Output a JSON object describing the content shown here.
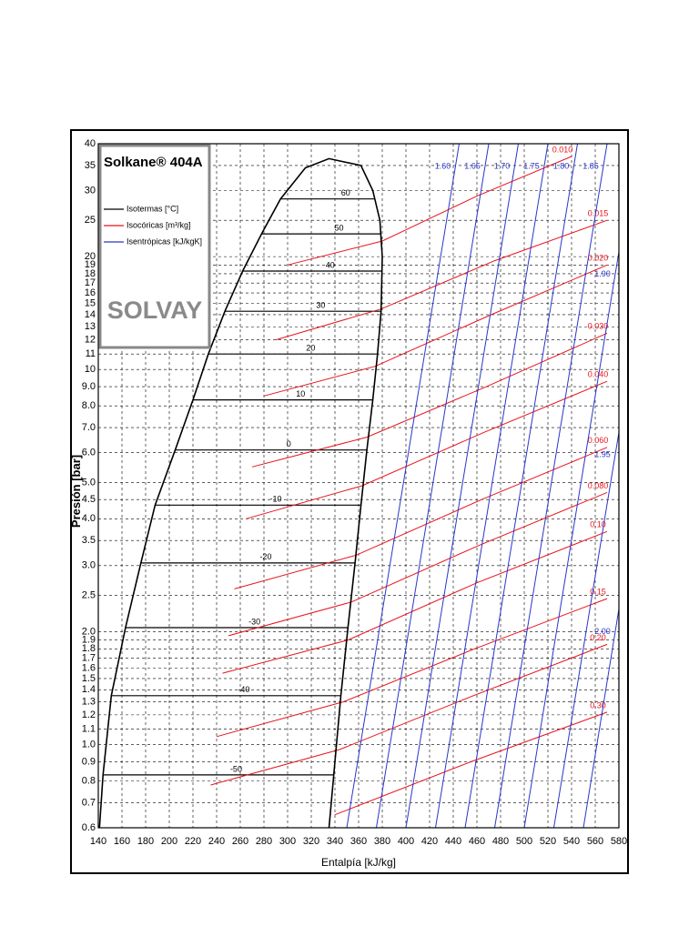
{
  "chart_data": {
    "type": "line",
    "title": "Solkane® 404A",
    "logo_text": "SOLVAY",
    "xlabel": "Entalpía [kJ/kg]",
    "ylabel": "Presión [bar]",
    "log_y": true,
    "grid": true,
    "xlim": [
      140,
      580
    ],
    "ylim": [
      0.6,
      40
    ],
    "xticks": [
      140,
      160,
      180,
      200,
      220,
      240,
      260,
      280,
      300,
      320,
      340,
      360,
      380,
      400,
      420,
      440,
      460,
      480,
      500,
      520,
      540,
      560,
      580
    ],
    "yticks": [
      0.6,
      0.7,
      0.8,
      0.9,
      {
        "value": 1,
        "label": "1.0"
      },
      1.1,
      1.2,
      1.3,
      1.4,
      1.5,
      1.6,
      1.7,
      1.8,
      1.9,
      {
        "value": 2,
        "label": "2.0"
      },
      2.5,
      {
        "value": 3,
        "label": "3.0"
      },
      3.5,
      {
        "value": 4,
        "label": "4.0"
      },
      4.5,
      {
        "value": 5,
        "label": "5.0"
      },
      {
        "value": 6,
        "label": "6.0"
      },
      {
        "value": 7,
        "label": "7.0"
      },
      {
        "value": 8,
        "label": "8.0"
      },
      {
        "value": 9,
        "label": "9.0"
      },
      10,
      11,
      12,
      13,
      14,
      15,
      16,
      17,
      18,
      19,
      20,
      25,
      30,
      35,
      40
    ],
    "saturation_curve": {
      "color": "#000000",
      "x": [
        141,
        144,
        151,
        163,
        176,
        188,
        205,
        220,
        233,
        247,
        262,
        278,
        294,
        315,
        335,
        362,
        372,
        378,
        380,
        379,
        376,
        372,
        367,
        362,
        357,
        351,
        345,
        339,
        335
      ],
      "values": [
        0.6,
        0.83,
        1.35,
        2.05,
        3.05,
        4.35,
        6.1,
        8.3,
        11,
        14.3,
        18.3,
        23,
        28.5,
        34.5,
        36.5,
        35,
        30,
        25,
        20,
        14.3,
        11,
        8.3,
        6.1,
        4.35,
        3.05,
        2.05,
        1.35,
        0.83,
        0.6
      ]
    },
    "series": [
      {
        "name": "Isotermas [°C]",
        "color": "#000000",
        "lines": [
          {
            "label": "-50",
            "x": [
              144,
              339
            ],
            "values": [
              0.83,
              0.83
            ]
          },
          {
            "label": "-40",
            "x": [
              151,
              345
            ],
            "values": [
              1.35,
              1.35
            ]
          },
          {
            "label": "-30",
            "x": [
              163,
              351
            ],
            "values": [
              2.05,
              2.05
            ]
          },
          {
            "label": "-20",
            "x": [
              176,
              357
            ],
            "values": [
              3.05,
              3.05
            ]
          },
          {
            "label": "-10",
            "x": [
              188,
              362
            ],
            "values": [
              4.35,
              4.35
            ]
          },
          {
            "label": "0",
            "x": [
              205,
              367
            ],
            "values": [
              6.1,
              6.1
            ]
          },
          {
            "label": "10",
            "x": [
              220,
              372
            ],
            "values": [
              8.3,
              8.3
            ]
          },
          {
            "label": "20",
            "x": [
              233,
              376
            ],
            "values": [
              11,
              11
            ]
          },
          {
            "label": "30",
            "x": [
              247,
              379
            ],
            "values": [
              14.3,
              14.3
            ]
          },
          {
            "label": "40",
            "x": [
              262,
              380
            ],
            "values": [
              18.3,
              18.3
            ]
          },
          {
            "label": "50",
            "x": [
              278,
              379
            ],
            "values": [
              23,
              23
            ]
          },
          {
            "label": "60",
            "x": [
              294,
              374
            ],
            "values": [
              28.5,
              28.5
            ]
          }
        ]
      },
      {
        "name": "Isocóricas [m³/kg]",
        "color": "#e8141b",
        "lines": [
          {
            "label": "0.010",
            "x": [
              300,
              380,
              460,
              540
            ],
            "values": [
              19,
              22,
              29,
              37
            ]
          },
          {
            "label": "0.015",
            "x": [
              290,
              379,
              475,
              570
            ],
            "values": [
              12,
              14.5,
              19.5,
              25
            ]
          },
          {
            "label": "0.020",
            "x": [
              280,
              374,
              472,
              570
            ],
            "values": [
              8.5,
              10.2,
              14,
              19
            ]
          },
          {
            "label": "0.030",
            "x": [
              270,
              367,
              468,
              570
            ],
            "values": [
              5.5,
              6.6,
              9,
              12.5
            ]
          },
          {
            "label": "0.040",
            "x": [
              265,
              363,
              466,
              570
            ],
            "values": [
              4,
              4.9,
              6.8,
              9.3
            ]
          },
          {
            "label": "0.060",
            "x": [
              255,
              358,
              464,
              570
            ],
            "values": [
              2.6,
              3.2,
              4.5,
              6.2
            ]
          },
          {
            "label": "0.080",
            "x": [
              250,
              354,
              462,
              570
            ],
            "values": [
              1.95,
              2.4,
              3.4,
              4.7
            ]
          },
          {
            "label": "0.10",
            "x": [
              245,
              351,
              460,
              570
            ],
            "values": [
              1.55,
              1.9,
              2.7,
              3.7
            ]
          },
          {
            "label": "0.15",
            "x": [
              240,
              347,
              458,
              570
            ],
            "values": [
              1.05,
              1.3,
              1.8,
              2.45
            ]
          },
          {
            "label": "0.20",
            "x": [
              235,
              344,
              457,
              570
            ],
            "values": [
              0.78,
              0.97,
              1.35,
              1.85
            ]
          },
          {
            "label": "0.30",
            "x": [
              340,
              455,
              570
            ],
            "values": [
              0.65,
              0.9,
              1.22
            ]
          }
        ]
      },
      {
        "name": "Isentrópicas [kJ/kgK]",
        "color": "#2a36c8",
        "lines": [
          {
            "label": "1.60",
            "x": [
              350,
              445
            ],
            "values": [
              0.6,
              40
            ]
          },
          {
            "label": "1.65",
            "x": [
              375,
              470
            ],
            "values": [
              0.6,
              40
            ]
          },
          {
            "label": "1.70",
            "x": [
              400,
              495
            ],
            "values": [
              0.6,
              40
            ]
          },
          {
            "label": "1.75",
            "x": [
              425,
              520
            ],
            "values": [
              0.6,
              40
            ]
          },
          {
            "label": "1.80",
            "x": [
              450,
              545
            ],
            "values": [
              0.6,
              40
            ]
          },
          {
            "label": "1.85",
            "x": [
              475,
              570
            ],
            "values": [
              0.6,
              40
            ]
          },
          {
            "label": "1.90",
            "x": [
              500,
              580
            ],
            "values": [
              0.6,
              20.6
            ]
          },
          {
            "label": "1.95",
            "x": [
              525,
              580
            ],
            "values": [
              0.6,
              6.8
            ]
          },
          {
            "label": "2.00",
            "x": [
              550,
              580
            ],
            "values": [
              0.6,
              2.3
            ]
          }
        ]
      }
    ]
  }
}
